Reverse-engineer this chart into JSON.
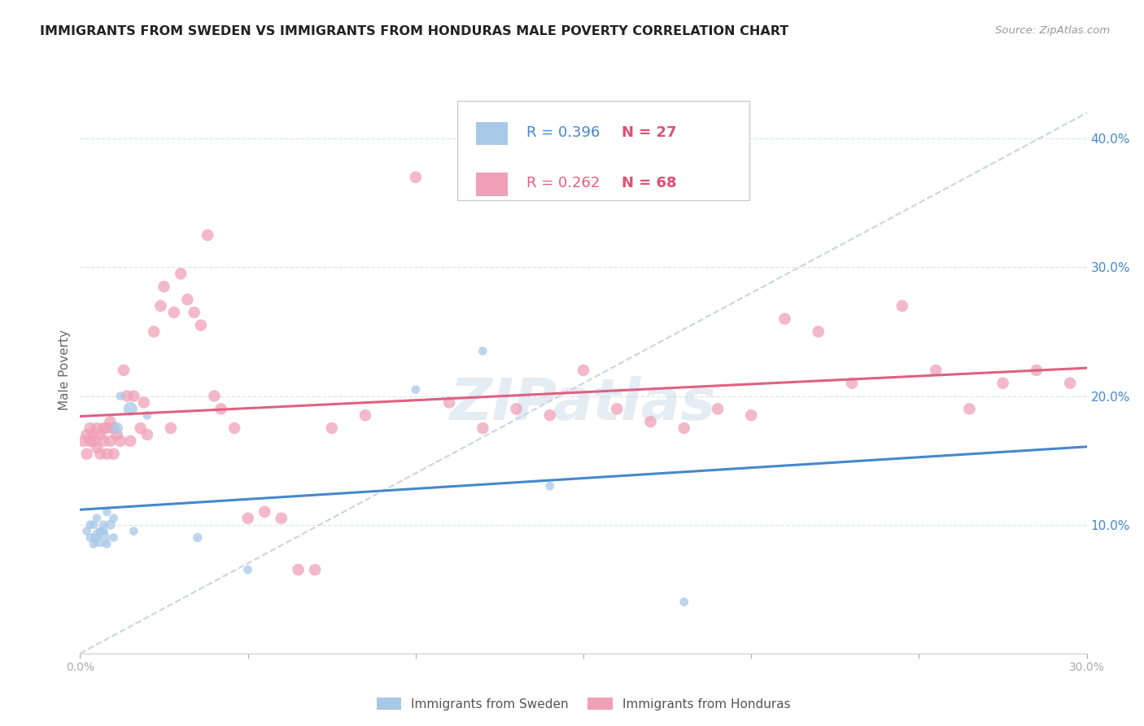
{
  "title": "IMMIGRANTS FROM SWEDEN VS IMMIGRANTS FROM HONDURAS MALE POVERTY CORRELATION CHART",
  "source": "Source: ZipAtlas.com",
  "ylabel": "Male Poverty",
  "xlim": [
    0.0,
    0.3
  ],
  "ylim": [
    0.0,
    0.44
  ],
  "sweden_R": 0.396,
  "sweden_N": 27,
  "honduras_R": 0.262,
  "honduras_N": 68,
  "sweden_color": "#a8c8e8",
  "honduras_color": "#f0a0b8",
  "sweden_line_color": "#4488cc",
  "honduras_line_color": "#e06080",
  "diagonal_color": "#c0c8d8",
  "background_color": "#ffffff",
  "grid_color": "#dde3ee",
  "title_color": "#222222",
  "source_color": "#999999",
  "right_axis_color": "#4488cc",
  "sweden_x": [
    0.002,
    0.003,
    0.003,
    0.004,
    0.004,
    0.005,
    0.005,
    0.006,
    0.006,
    0.007,
    0.007,
    0.008,
    0.008,
    0.009,
    0.01,
    0.01,
    0.011,
    0.012,
    0.015,
    0.016,
    0.02,
    0.035,
    0.05,
    0.1,
    0.12,
    0.14,
    0.18
  ],
  "sweden_y": [
    0.095,
    0.09,
    0.1,
    0.085,
    0.1,
    0.09,
    0.105,
    0.095,
    0.09,
    0.095,
    0.1,
    0.085,
    0.11,
    0.1,
    0.09,
    0.105,
    0.175,
    0.2,
    0.19,
    0.095,
    0.185,
    0.09,
    0.065,
    0.205,
    0.235,
    0.13,
    0.04
  ],
  "sweden_sizes": [
    60,
    60,
    60,
    60,
    60,
    60,
    60,
    60,
    280,
    60,
    60,
    60,
    60,
    80,
    60,
    60,
    110,
    60,
    150,
    60,
    60,
    70,
    60,
    60,
    60,
    60,
    60
  ],
  "honduras_x": [
    0.001,
    0.002,
    0.002,
    0.003,
    0.003,
    0.004,
    0.004,
    0.005,
    0.005,
    0.006,
    0.006,
    0.007,
    0.007,
    0.008,
    0.008,
    0.009,
    0.009,
    0.01,
    0.01,
    0.011,
    0.012,
    0.013,
    0.014,
    0.015,
    0.016,
    0.018,
    0.019,
    0.02,
    0.022,
    0.024,
    0.025,
    0.027,
    0.028,
    0.03,
    0.032,
    0.034,
    0.036,
    0.038,
    0.04,
    0.042,
    0.046,
    0.05,
    0.055,
    0.06,
    0.065,
    0.07,
    0.075,
    0.085,
    0.1,
    0.11,
    0.12,
    0.13,
    0.14,
    0.15,
    0.16,
    0.17,
    0.18,
    0.19,
    0.2,
    0.21,
    0.22,
    0.23,
    0.245,
    0.255,
    0.265,
    0.275,
    0.285,
    0.295
  ],
  "honduras_y": [
    0.165,
    0.17,
    0.155,
    0.175,
    0.165,
    0.165,
    0.17,
    0.16,
    0.175,
    0.155,
    0.17,
    0.165,
    0.175,
    0.155,
    0.175,
    0.165,
    0.18,
    0.155,
    0.175,
    0.17,
    0.165,
    0.22,
    0.2,
    0.165,
    0.2,
    0.175,
    0.195,
    0.17,
    0.25,
    0.27,
    0.285,
    0.175,
    0.265,
    0.295,
    0.275,
    0.265,
    0.255,
    0.325,
    0.2,
    0.19,
    0.175,
    0.105,
    0.11,
    0.105,
    0.065,
    0.065,
    0.175,
    0.185,
    0.37,
    0.195,
    0.175,
    0.19,
    0.185,
    0.22,
    0.19,
    0.18,
    0.175,
    0.19,
    0.185,
    0.26,
    0.25,
    0.21,
    0.27,
    0.22,
    0.19,
    0.21,
    0.22,
    0.21
  ],
  "honduras_sizes": [
    120,
    120,
    120,
    120,
    120,
    120,
    120,
    120,
    120,
    120,
    120,
    120,
    120,
    120,
    120,
    120,
    120,
    120,
    120,
    120,
    120,
    120,
    120,
    120,
    120,
    120,
    120,
    120,
    120,
    120,
    120,
    120,
    120,
    120,
    120,
    120,
    120,
    120,
    120,
    120,
    120,
    120,
    120,
    120,
    120,
    120,
    120,
    120,
    120,
    120,
    120,
    120,
    120,
    120,
    120,
    120,
    120,
    120,
    120,
    120,
    120,
    120,
    120,
    120,
    120,
    120,
    120,
    120
  ]
}
